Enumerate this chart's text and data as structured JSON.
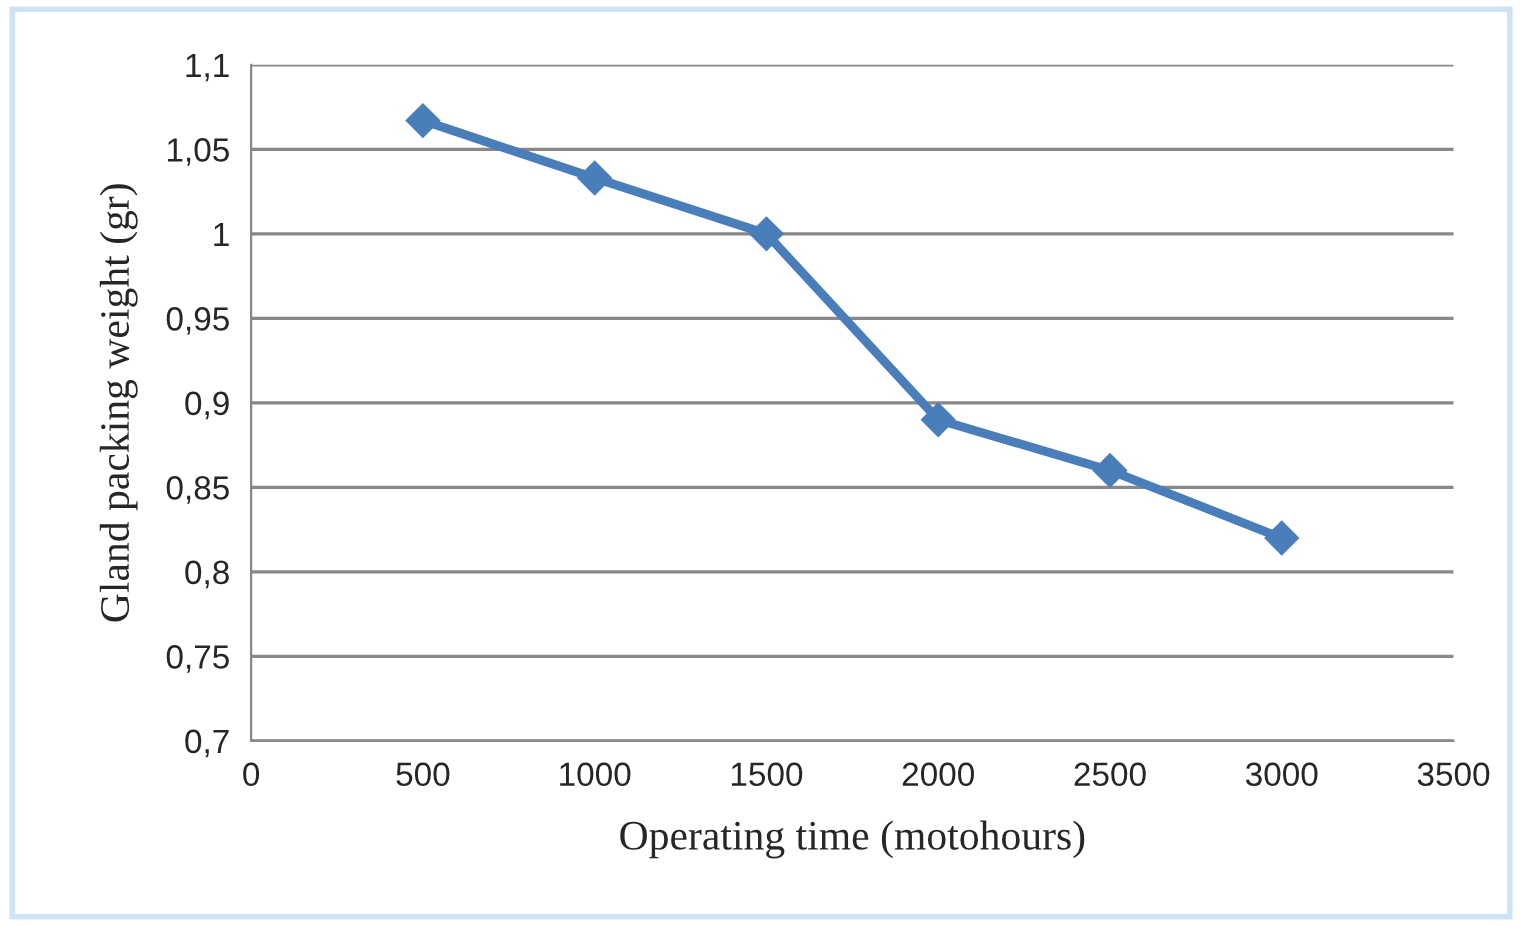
{
  "chart_data": {
    "type": "line",
    "xlabel": "Operating time (motohours)",
    "ylabel": "Gland packing weight (gr)",
    "x": [
      500,
      1000,
      1500,
      2000,
      2500,
      3000
    ],
    "series": [
      {
        "color": "#4a7ebb",
        "values": [
          1.067,
          1.033,
          1.0,
          0.89,
          0.86,
          0.82
        ]
      }
    ],
    "xlim": [
      0,
      3500
    ],
    "xticks": [
      0,
      500,
      1000,
      1500,
      2000,
      2500,
      3000,
      3500
    ],
    "ylim": [
      0.7,
      1.1
    ],
    "yticks": [
      {
        "value": 0.7,
        "label": "0,7"
      },
      {
        "value": 0.75,
        "label": "0,75"
      },
      {
        "value": 0.8,
        "label": "0,8"
      },
      {
        "value": 0.85,
        "label": "0,85"
      },
      {
        "value": 0.9,
        "label": "0,9"
      },
      {
        "value": 0.95,
        "label": "0,95"
      },
      {
        "value": 1,
        "label": "1"
      },
      {
        "value": 1.05,
        "label": "1,05"
      },
      {
        "value": 1.1,
        "label": "1,1"
      }
    ],
    "grid": "y",
    "legend": false,
    "marker": "diamond",
    "line_style": "solid"
  }
}
